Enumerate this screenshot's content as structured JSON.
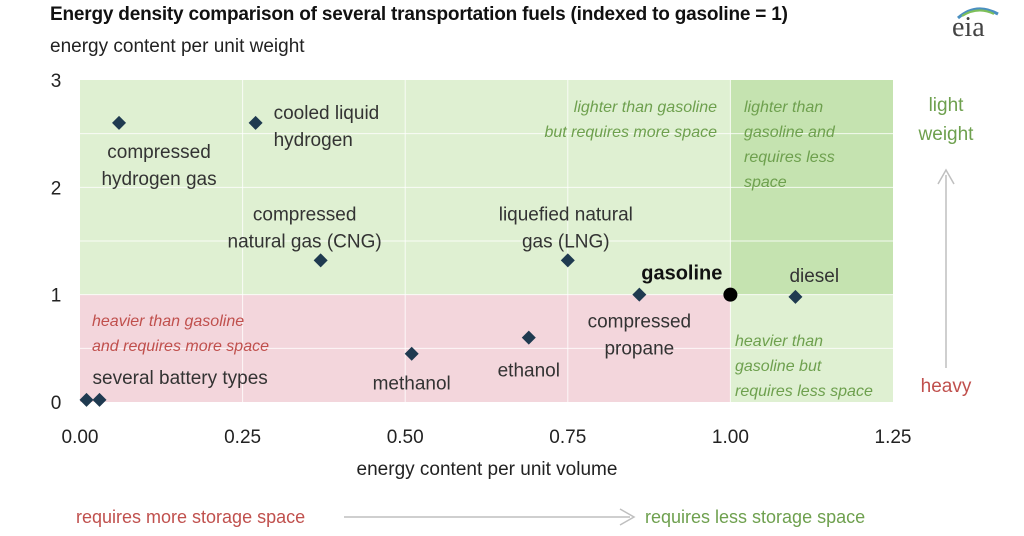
{
  "header": {
    "title": "Energy density comparison of several transportation fuels (indexed to gasoline = 1)",
    "subtitle": "energy content per unit weight",
    "logo_text": "eia"
  },
  "colors": {
    "green_light": "#dff0d2",
    "green_dark": "#c5e3b0",
    "pink": "#f3d6dc",
    "marker": "#1f3a50",
    "green_text": "#6ea04e",
    "red_text": "#c0504d",
    "arrow_gray": "#bfbfbf"
  },
  "side_labels": {
    "light_weight_line1": "light",
    "light_weight_line2": "weight",
    "heavy": "heavy",
    "more_storage": "requires more storage space",
    "less_storage": "requires less storage space"
  },
  "region_labels": {
    "lighter_more_space": [
      "lighter than gasoline",
      "but requires more space"
    ],
    "lighter_less_space": [
      "lighter than",
      "gasoline and",
      "requires less",
      "space"
    ],
    "heavier_more_space": [
      "heavier than gasoline",
      "and requires more space"
    ],
    "heavier_less_space": [
      "heavier than",
      "gasoline but",
      "requires less space"
    ]
  },
  "chart_data": {
    "type": "scatter",
    "title": "Energy density comparison of several transportation fuels (indexed to gasoline = 1)",
    "xlabel": "energy content per unit volume",
    "ylabel": "energy content per unit weight",
    "xlim": [
      0,
      1.25
    ],
    "ylim": [
      0,
      3
    ],
    "x_ticks": [
      "0.00",
      "0.25",
      "0.50",
      "0.75",
      "1.00",
      "1.25"
    ],
    "y_ticks": [
      "0",
      "1",
      "2",
      "3"
    ],
    "grid": true,
    "points": [
      {
        "label": [
          "compressed",
          "hydrogen gas"
        ],
        "x": 0.06,
        "y": 2.6
      },
      {
        "label": [
          "cooled liquid",
          "hydrogen"
        ],
        "x": 0.27,
        "y": 2.6
      },
      {
        "label": [
          "compressed",
          "natural gas (CNG)"
        ],
        "x": 0.37,
        "y": 1.32
      },
      {
        "label": [
          "liquefied natural",
          "gas (LNG)"
        ],
        "x": 0.75,
        "y": 1.32
      },
      {
        "label": [
          "gasoline"
        ],
        "x": 1.0,
        "y": 1.0
      },
      {
        "label": [
          "diesel"
        ],
        "x": 1.1,
        "y": 0.98
      },
      {
        "label": [
          "compressed",
          "propane"
        ],
        "x": 0.86,
        "y": 1.0
      },
      {
        "label": [
          "ethanol"
        ],
        "x": 0.69,
        "y": 0.6
      },
      {
        "label": [
          "methanol"
        ],
        "x": 0.51,
        "y": 0.45
      },
      {
        "label": [
          "several battery types"
        ],
        "x": 0.01,
        "y": 0.02
      },
      {
        "label": [],
        "x": 0.03,
        "y": 0.02
      }
    ]
  }
}
